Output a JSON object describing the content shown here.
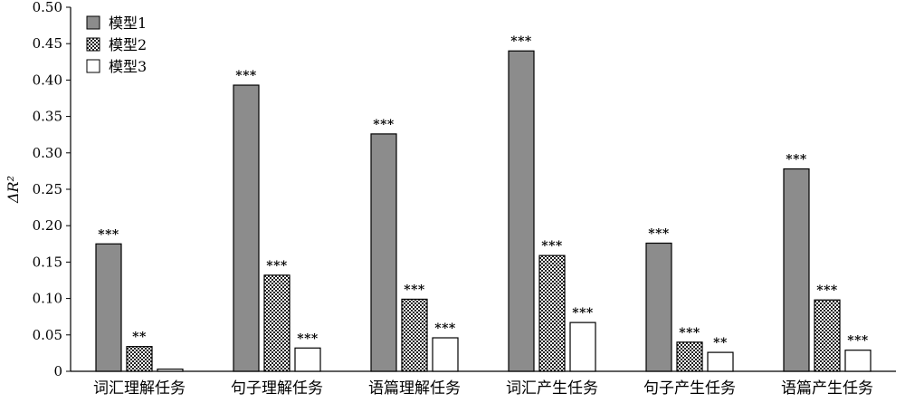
{
  "chart_data": {
    "type": "bar",
    "ylabel": "ΔR²",
    "ylim": [
      0,
      0.5
    ],
    "yticks": [
      "0",
      "0.05",
      "0.10",
      "0.15",
      "0.20",
      "0.25",
      "0.30",
      "0.35",
      "0.40",
      "0.45",
      "0.50"
    ],
    "categories": [
      "词汇理解任务",
      "句子理解任务",
      "语篇理解任务",
      "词汇产生任务",
      "句子产生任务",
      "语篇产生任务"
    ],
    "legend_position": "top-left",
    "series": [
      {
        "name": "模型1",
        "fill": "gray",
        "values": [
          0.175,
          0.393,
          0.326,
          0.44,
          0.176,
          0.278
        ],
        "significance": [
          "***",
          "***",
          "***",
          "***",
          "***",
          "***"
        ]
      },
      {
        "name": "模型2",
        "fill": "checkered",
        "values": [
          0.034,
          0.132,
          0.099,
          0.159,
          0.04,
          0.098
        ],
        "significance": [
          "**",
          "***",
          "***",
          "***",
          "***",
          "***"
        ]
      },
      {
        "name": "模型3",
        "fill": "white",
        "values": [
          0.003,
          0.032,
          0.046,
          0.067,
          0.026,
          0.029
        ],
        "significance": [
          "",
          "***",
          "***",
          "***",
          "**",
          "***"
        ]
      }
    ]
  }
}
